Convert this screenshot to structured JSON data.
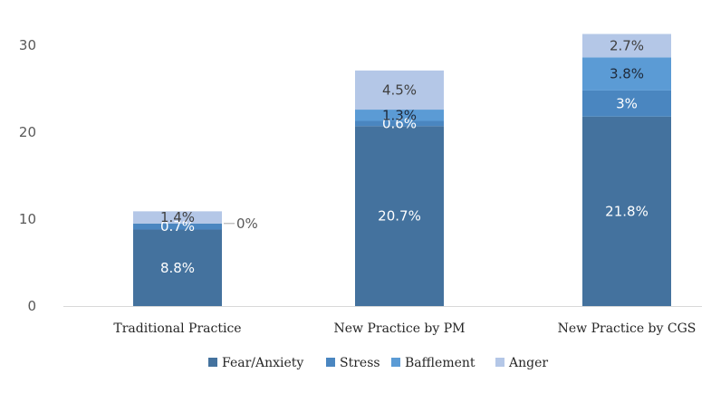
{
  "chart_data": {
    "type": "bar",
    "stacked": true,
    "title": "",
    "xlabel": "",
    "ylabel": "",
    "ylim": [
      0,
      30
    ],
    "yticks": [
      0,
      10,
      20,
      30
    ],
    "grid": false,
    "legend_position": "bottom",
    "categories": [
      "Traditional Practice",
      "New Practice by PM",
      "New Practice by CGS"
    ],
    "series": [
      {
        "name": "Fear/Anxiety",
        "color": "#44729e",
        "label_color": "#ffffff",
        "values": [
          8.8,
          20.7,
          21.8
        ],
        "labels": [
          "8.8%",
          "20.7%",
          "21.8%"
        ]
      },
      {
        "name": "Stress",
        "color": "#4a86c0",
        "label_color": "#ffffff",
        "values": [
          0.7,
          0.6,
          3.0
        ],
        "labels": [
          "0.7%",
          "0.6%",
          "3%"
        ]
      },
      {
        "name": "Bafflement",
        "color": "#5b9bd5",
        "label_color": "#1f2a3a",
        "values": [
          0.0,
          1.3,
          3.8
        ],
        "labels": [
          "0%",
          "1.3%",
          "3.8%"
        ]
      },
      {
        "name": "Anger",
        "color": "#b4c7e7",
        "label_color": "#404040",
        "values": [
          1.4,
          4.5,
          2.7
        ],
        "labels": [
          "1.4%",
          "4.5%",
          "2.7%"
        ]
      }
    ]
  }
}
